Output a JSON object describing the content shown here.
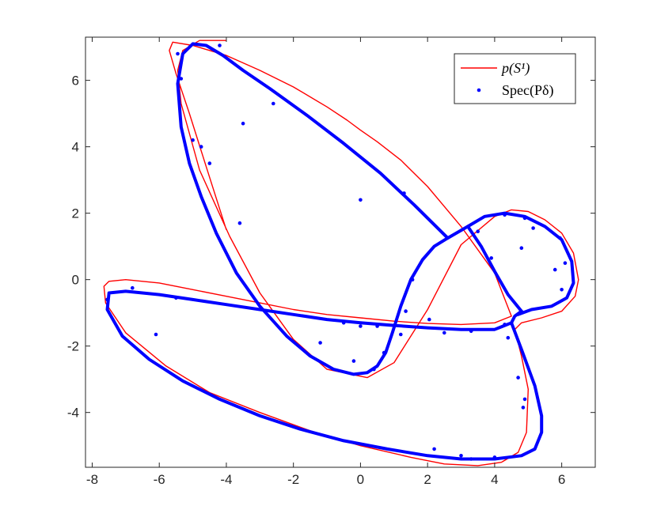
{
  "chart_data": {
    "type": "scatter",
    "title": "",
    "xlabel": "",
    "ylabel": "",
    "xlim": [
      -8.2,
      7
    ],
    "ylim": [
      -5.65,
      7.3
    ],
    "x_ticks": [
      -8,
      -6,
      -4,
      -2,
      0,
      2,
      4,
      6
    ],
    "x_tick_labels": [
      "-8",
      "-6",
      "-4",
      "-2",
      "0",
      "2",
      "4",
      "6"
    ],
    "y_ticks": [
      -4,
      -2,
      0,
      2,
      4,
      6
    ],
    "y_tick_labels": [
      "-4",
      "-2",
      "0",
      "2",
      "4",
      "6"
    ],
    "grid": false,
    "legend_position": "top-right",
    "legend": [
      {
        "label": "p(S¹)",
        "style": "line",
        "color": "#ff0000"
      },
      {
        "label": "Spec(Pδ)",
        "style": "dot",
        "color": "#0000ff"
      }
    ],
    "series": [
      {
        "name": "p(S¹)",
        "kind": "curve",
        "color": "#ff0000",
        "x": [
          -4.0,
          -4.8,
          -5.3,
          -5.45,
          -5.35,
          -4.8,
          -3.9,
          -3.0,
          -2.0,
          -1.0,
          0.2,
          1.0,
          2.0,
          3.0,
          4.0,
          4.5,
          5.0,
          5.5,
          6.0,
          6.35,
          6.5,
          6.4,
          6.0,
          5.4,
          4.8,
          4.6,
          4.8,
          5.0,
          4.95,
          4.7,
          4.2,
          3.5,
          2.5,
          1.5,
          0.0,
          -1.5,
          -3.0,
          -4.5,
          -5.8,
          -7.0,
          -7.6,
          -7.65,
          -7.5,
          -7.0,
          -6.0,
          -5.0,
          -4.0,
          -3.0,
          -2.0,
          -1.0,
          0.0,
          1.0,
          2.0,
          3.0,
          4.0,
          4.5,
          4.0,
          3.0,
          2.0,
          1.2,
          0.5,
          0.0,
          -0.4,
          -1.0,
          -2.0,
          -3.0,
          -4.0,
          -5.0,
          -5.6,
          -5.7,
          -5.5,
          -5.1,
          -4.6,
          -4.0
        ],
        "y": [
          7.2,
          7.2,
          6.9,
          6.3,
          5.3,
          3.3,
          1.3,
          -0.4,
          -1.8,
          -2.7,
          -2.95,
          -2.5,
          -0.9,
          1.05,
          1.9,
          2.1,
          2.05,
          1.8,
          1.4,
          0.8,
          0.0,
          -0.5,
          -0.95,
          -1.15,
          -1.3,
          -1.5,
          -2.3,
          -3.3,
          -4.6,
          -5.2,
          -5.5,
          -5.6,
          -5.55,
          -5.35,
          -5.0,
          -4.55,
          -4.0,
          -3.4,
          -2.6,
          -1.6,
          -0.7,
          -0.2,
          -0.05,
          0.0,
          -0.1,
          -0.3,
          -0.5,
          -0.7,
          -0.9,
          -1.05,
          -1.15,
          -1.25,
          -1.32,
          -1.35,
          -1.3,
          -1.1,
          0.2,
          1.6,
          2.8,
          3.6,
          4.15,
          4.5,
          4.8,
          5.2,
          5.8,
          6.3,
          6.75,
          7.05,
          7.15,
          6.9,
          6.2,
          5.0,
          3.4,
          1.5
        ]
      },
      {
        "name": "Spec(Pδ)",
        "kind": "dense-curve",
        "color": "#0000ff",
        "segments": [
          {
            "x": [
              2.6,
              1.6,
              0.6,
              -0.5,
              -1.6,
              -2.7,
              -3.5,
              -4.1,
              -4.6,
              -5.0,
              -5.3,
              -5.45,
              -5.35,
              -5.1,
              -4.75,
              -4.3,
              -3.7,
              -3.0,
              -2.2,
              -1.5,
              -0.8,
              -0.2,
              0.2,
              0.5,
              0.75,
              0.95,
              1.2,
              1.5,
              1.85,
              2.2,
              2.6
            ],
            "y": [
              1.25,
              2.25,
              3.2,
              4.1,
              4.95,
              5.75,
              6.3,
              6.75,
              7.05,
              7.1,
              6.8,
              5.9,
              4.6,
              3.5,
              2.5,
              1.4,
              0.2,
              -0.8,
              -1.7,
              -2.3,
              -2.7,
              -2.85,
              -2.8,
              -2.6,
              -2.2,
              -1.6,
              -0.8,
              0.0,
              0.6,
              1.0,
              1.25
            ]
          },
          {
            "x": [
              2.6,
              3.2,
              3.7,
              4.3,
              4.9,
              5.5,
              6.0,
              6.3,
              6.35,
              6.15,
              5.7,
              5.1,
              4.7
            ],
            "y": [
              1.25,
              1.6,
              1.9,
              2.0,
              1.9,
              1.6,
              1.2,
              0.55,
              -0.1,
              -0.55,
              -0.8,
              -0.9,
              -1.05
            ]
          },
          {
            "x": [
              3.2,
              3.6,
              4.0,
              4.4,
              4.8
            ],
            "y": [
              1.6,
              1.0,
              0.25,
              -0.45,
              -0.95
            ]
          },
          {
            "x": [
              4.8,
              4.6,
              4.5
            ],
            "y": [
              -0.95,
              -1.1,
              -1.3
            ]
          },
          {
            "x": [
              4.5,
              4.8,
              5.2,
              5.4,
              5.4,
              5.2,
              4.8,
              4.0,
              3.0,
              2.0,
              0.8,
              -0.5,
              -1.8,
              -3.0,
              -4.2,
              -5.3,
              -6.3,
              -7.1,
              -7.55,
              -7.5,
              -7.0,
              -6.0,
              -5.0,
              -4.0,
              -3.0,
              -2.0,
              -1.0,
              0.0,
              1.0,
              2.0,
              3.0,
              4.0,
              4.5
            ],
            "y": [
              -1.3,
              -2.1,
              -3.2,
              -4.1,
              -4.6,
              -5.1,
              -5.3,
              -5.4,
              -5.4,
              -5.3,
              -5.1,
              -4.85,
              -4.5,
              -4.1,
              -3.6,
              -3.05,
              -2.4,
              -1.7,
              -0.9,
              -0.4,
              -0.35,
              -0.45,
              -0.6,
              -0.75,
              -0.9,
              -1.05,
              -1.2,
              -1.3,
              -1.38,
              -1.45,
              -1.5,
              -1.5,
              -1.3
            ]
          }
        ]
      },
      {
        "name": "Spec(Pδ)",
        "kind": "points",
        "color": "#0000ff",
        "x": [
          -5.45,
          -5.35,
          -5.0,
          -4.75,
          -4.5,
          -4.2,
          -3.6,
          -3.5,
          -2.6,
          0.0,
          1.3,
          -7.55,
          -6.8,
          -5.5,
          -6.1,
          -1.2,
          -0.5,
          0.0,
          -0.2,
          0.4,
          0.7,
          1.2,
          1.35,
          1.55,
          2.05,
          2.5,
          3.5,
          3.9,
          4.3,
          4.4,
          4.7,
          4.8,
          4.9,
          4.85,
          4.9,
          5.15,
          5.8,
          6.0,
          5.95,
          6.1,
          3.0,
          3.3,
          4.0,
          3.3,
          2.2,
          0.5,
          4.3
        ],
        "y": [
          6.8,
          6.05,
          4.2,
          4.0,
          3.5,
          7.05,
          1.7,
          4.7,
          5.3,
          2.4,
          2.6,
          -0.6,
          -0.25,
          -0.55,
          -1.65,
          -1.9,
          -1.3,
          -1.4,
          -2.45,
          -2.7,
          -2.2,
          -1.65,
          -0.95,
          0.0,
          -1.2,
          -1.6,
          1.45,
          0.65,
          1.95,
          -1.75,
          -2.95,
          0.95,
          -3.6,
          -3.85,
          1.85,
          1.55,
          0.3,
          -0.3,
          1.25,
          0.5,
          -5.3,
          -5.4,
          -5.35,
          -1.55,
          -5.1,
          -1.4,
          -1.35
        ]
      }
    ]
  }
}
